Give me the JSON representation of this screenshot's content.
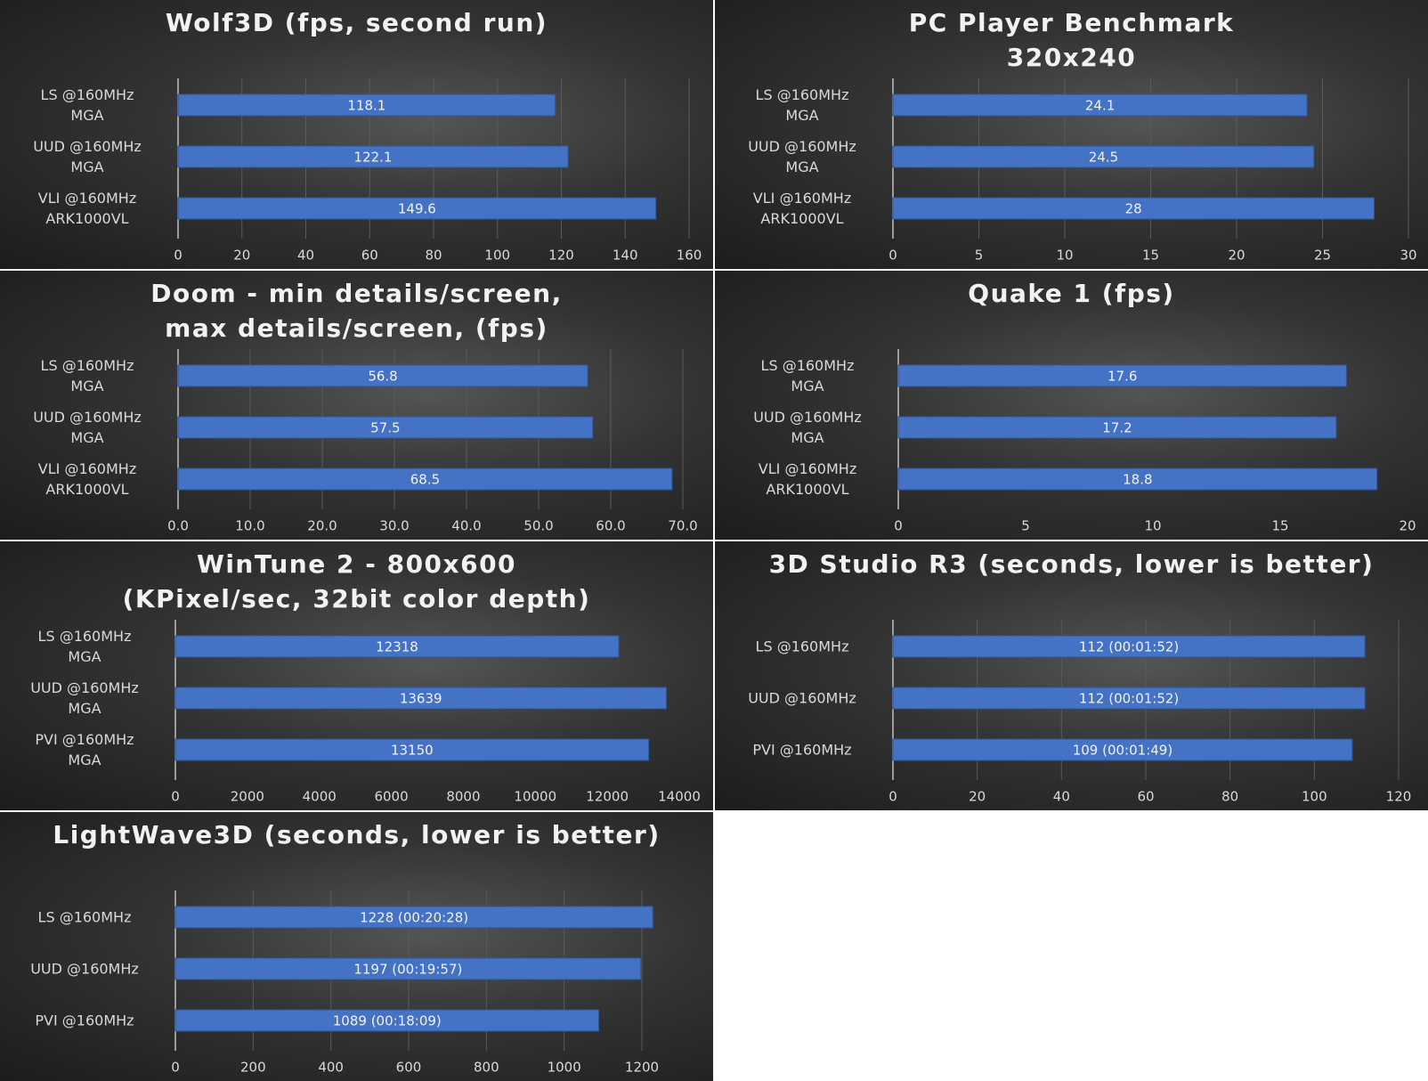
{
  "chart_data": [
    {
      "type": "hbar",
      "title": "Wolf3D (fps, second run)",
      "categories": [
        "LS @160MHz\nMGA",
        "UUD @160MHz\nMGA",
        "VLI @160MHz\nARK1000VL"
      ],
      "values": [
        118.1,
        122.1,
        149.6
      ],
      "color": "#4472c4",
      "xlim": [
        0,
        160
      ],
      "xticks": [
        0,
        20,
        40,
        60,
        80,
        100,
        120,
        140,
        160
      ],
      "grid": true
    },
    {
      "type": "hbar",
      "title": "PC Player Benchmark\n320x240",
      "categories": [
        "LS @160MHz\nMGA",
        "UUD @160MHz\nMGA",
        "VLI @160MHz\nARK1000VL"
      ],
      "values": [
        24.1,
        24.5,
        28
      ],
      "color": "#4472c4",
      "xlim": [
        0,
        30
      ],
      "xticks": [
        0,
        5,
        10,
        15,
        20,
        25,
        30
      ],
      "grid": true
    },
    {
      "type": "hbar",
      "title": "Doom - min details/screen,\nmax details/screen, (fps)",
      "categories": [
        "LS @160MHz\nMGA",
        "UUD @160MHz\nMGA",
        "VLI @160MHz\nARK1000VL"
      ],
      "values": [
        56.8,
        57.5,
        68.5
      ],
      "color": "#4472c4",
      "xlim": [
        0,
        70
      ],
      "xticks": [
        {
          "value": 0,
          "label": "0.0"
        },
        {
          "value": 10,
          "label": "10.0"
        },
        {
          "value": 20,
          "label": "20.0"
        },
        {
          "value": 30,
          "label": "30.0"
        },
        {
          "value": 40,
          "label": "40.0"
        },
        {
          "value": 50,
          "label": "50.0"
        },
        {
          "value": 60,
          "label": "60.0"
        },
        {
          "value": 70,
          "label": "70.0"
        }
      ],
      "grid": true
    },
    {
      "type": "hbar",
      "title": "Quake 1 (fps)",
      "categories": [
        "LS @160MHz\nMGA",
        "UUD @160MHz\nMGA",
        "VLI @160MHz\nARK1000VL"
      ],
      "values": [
        17.6,
        17.2,
        18.8
      ],
      "color": "#4472c4",
      "xlim": [
        0,
        20
      ],
      "xticks": [
        0,
        5,
        10,
        15,
        20
      ],
      "grid": false
    },
    {
      "type": "hbar",
      "title": "WinTune 2 - 800x600\n(KPixel/sec, 32bit color depth)",
      "categories": [
        "LS @160MHz\nMGA",
        "UUD @160MHz\nMGA",
        "PVI @160MHz\nMGA"
      ],
      "values": [
        12318,
        13639,
        13150
      ],
      "color": "#4472c4",
      "xlim": [
        0,
        14000
      ],
      "xticks": [
        0,
        2000,
        4000,
        6000,
        8000,
        10000,
        12000,
        14000
      ],
      "grid": false
    },
    {
      "type": "hbar",
      "title": "3D Studio R3 (seconds, lower is better)",
      "categories": [
        "LS @160MHz",
        "UUD @160MHz",
        "PVI @160MHz"
      ],
      "values": [
        112,
        112,
        109
      ],
      "value_labels": [
        "112 (00:01:52)",
        "112 (00:01:52)",
        "109 (00:01:49)"
      ],
      "color": "#4472c4",
      "xlim": [
        0,
        120
      ],
      "xticks": [
        0,
        20,
        40,
        60,
        80,
        100,
        120
      ],
      "grid": true
    },
    {
      "type": "hbar",
      "title": "LightWave3D (seconds, lower is better)",
      "categories": [
        "LS @160MHz",
        "UUD @160MHz",
        "PVI @160MHz"
      ],
      "values": [
        1228,
        1197,
        1089
      ],
      "value_labels": [
        "1228 (00:20:28)",
        "1197 (00:19:57)",
        "1089 (00:18:09)"
      ],
      "color": "#4472c4",
      "xlim": [
        0,
        1200
      ],
      "xticks": [
        0,
        200,
        400,
        600,
        800,
        1000,
        1200
      ],
      "grid": true
    }
  ]
}
